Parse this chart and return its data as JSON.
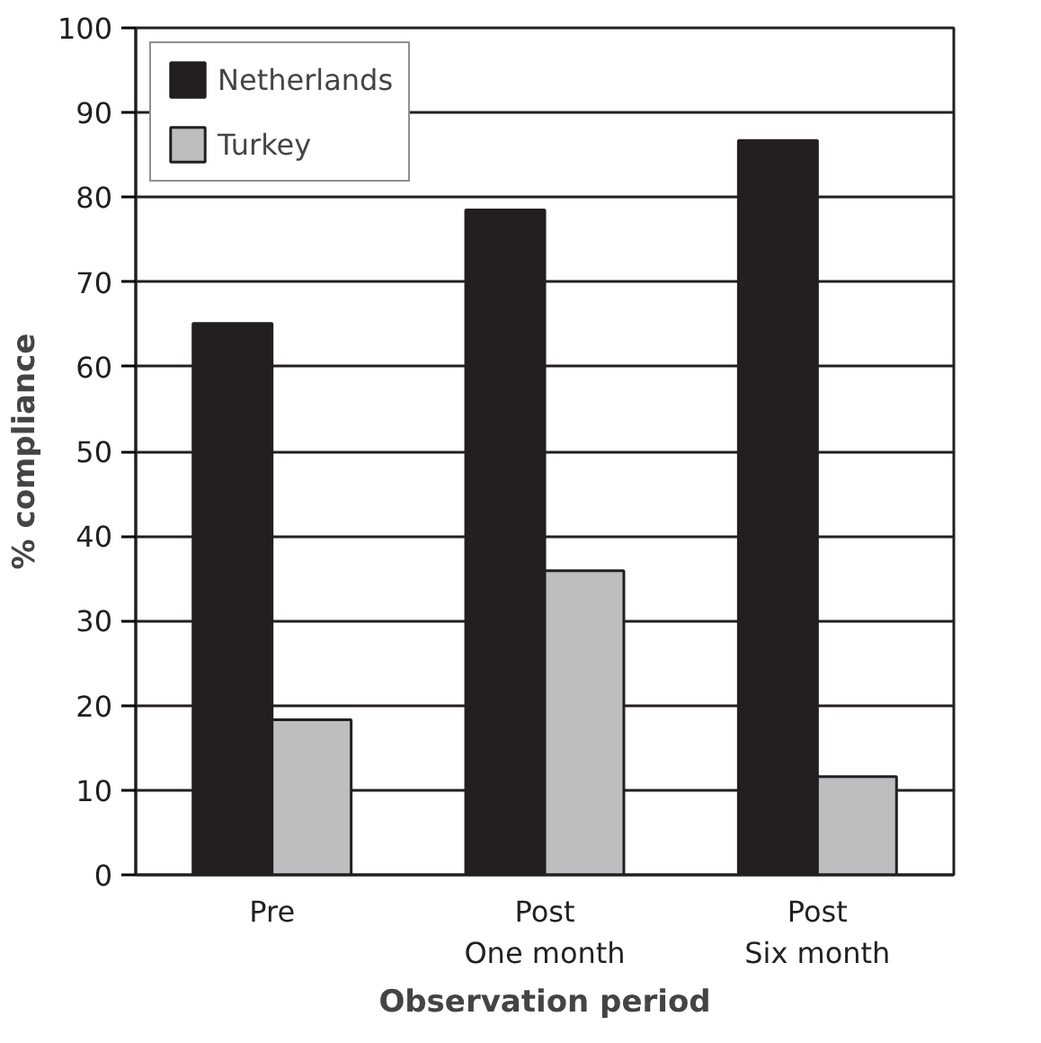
{
  "chart_data": {
    "type": "bar",
    "xlabel": "Observation period",
    "ylabel": "% compliance",
    "categories": [
      "Pre",
      "Post\nOne month",
      "Post\nSix month"
    ],
    "series": [
      {
        "name": "Netherlands",
        "color": "#231f20",
        "values": [
          65.1,
          78.5,
          86.7
        ]
      },
      {
        "name": "Turkey",
        "color": "#bcbec0",
        "values": [
          18.3,
          35.9,
          11.6
        ]
      }
    ],
    "ylim": [
      0,
      100
    ],
    "yticks": [
      0,
      10,
      20,
      30,
      40,
      50,
      60,
      70,
      80,
      90,
      100
    ],
    "grid": "y",
    "legend": "top left"
  }
}
